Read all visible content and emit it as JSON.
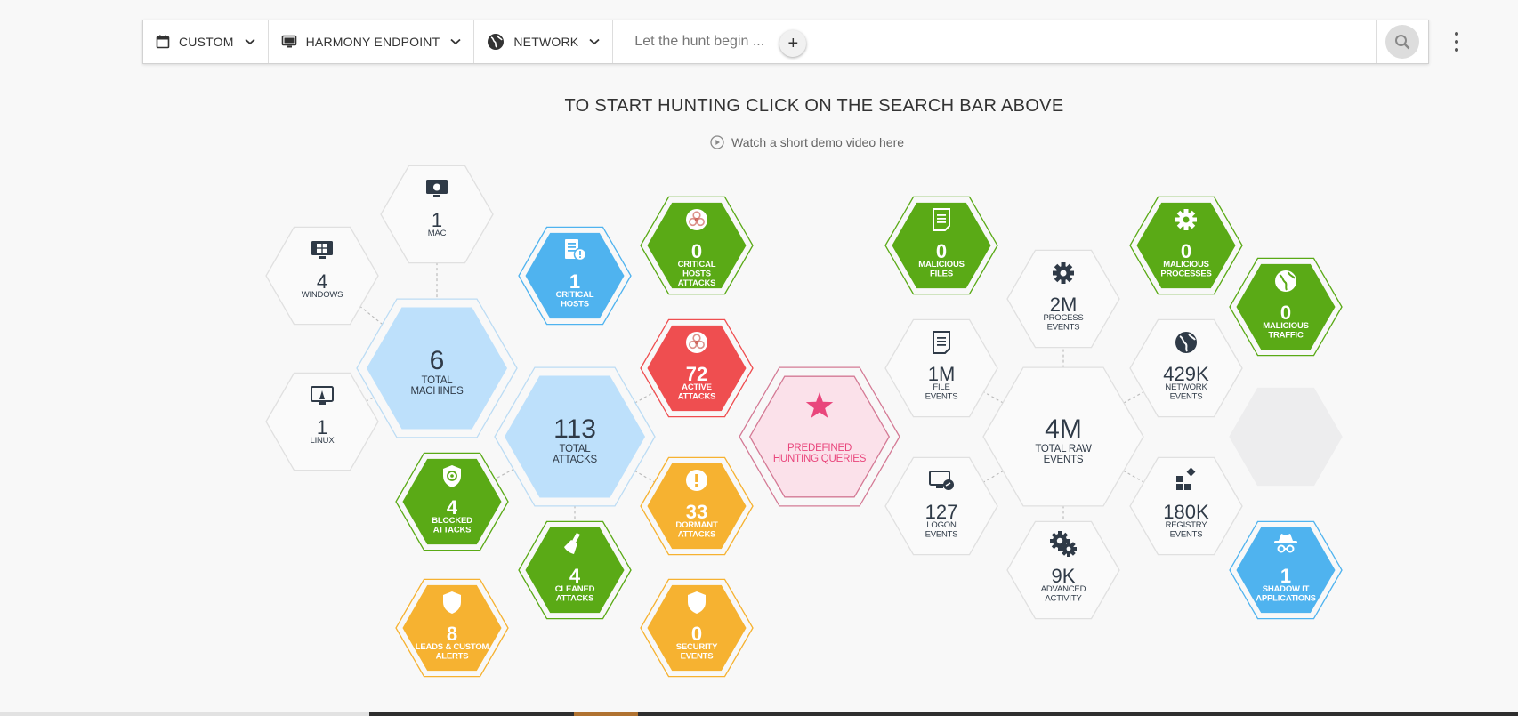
{
  "toolbar": {
    "time_label": "CUSTOM",
    "source_label": "HARMONY ENDPOINT",
    "type_label": "NETWORK",
    "search_placeholder": "Let the hunt begin ...",
    "plus_label": "+"
  },
  "heading": "TO START HUNTING CLICK ON THE SEARCH BAR ABOVE",
  "demo_link": "Watch a short demo video here",
  "colors": {
    "green": "#5aaa16",
    "blue": "#4fb3ef",
    "red": "#ef4e50",
    "yellow": "#f6b231",
    "light": "#bde0fb",
    "pink": "#fbe1ea",
    "pink_border": "#d47a95",
    "star": "#e9467c",
    "gray": "#ededee",
    "text": "#2f3a47"
  },
  "tiles": [
    {
      "id": "mac",
      "value": "1",
      "label": [
        "MAC"
      ],
      "style": "white",
      "icon": "apple-monitor-icon"
    },
    {
      "id": "windows",
      "value": "4",
      "label": [
        "WINDOWS"
      ],
      "style": "white",
      "icon": "windows-monitor-icon"
    },
    {
      "id": "total-machines",
      "value": "6",
      "label": [
        "TOTAL",
        "MACHINES"
      ],
      "style": "light"
    },
    {
      "id": "linux",
      "value": "1",
      "label": [
        "LINUX"
      ],
      "style": "white",
      "icon": "linux-monitor-icon"
    },
    {
      "id": "critical-hosts",
      "value": "1",
      "label": [
        "CRITICAL",
        "HOSTS"
      ],
      "style": "blue",
      "icon": "server-alert-icon"
    },
    {
      "id": "critical-hosts-attacks",
      "value": "0",
      "label": [
        "CRITICAL",
        "HOSTS",
        "ATTACKS"
      ],
      "style": "green",
      "icon": "biohazard-icon"
    },
    {
      "id": "active-attacks",
      "value": "72",
      "label": [
        "ACTIVE",
        "ATTACKS"
      ],
      "style": "red",
      "icon": "biohazard-icon"
    },
    {
      "id": "total-attacks",
      "value": "113",
      "label": [
        "TOTAL",
        "ATTACKS"
      ],
      "style": "light"
    },
    {
      "id": "blocked-attacks",
      "value": "4",
      "label": [
        "BLOCKED",
        "ATTACKS"
      ],
      "style": "green",
      "icon": "shield-target-icon"
    },
    {
      "id": "dormant-attacks",
      "value": "33",
      "label": [
        "DORMANT",
        "ATTACKS"
      ],
      "style": "yellow",
      "icon": "exclamation-icon"
    },
    {
      "id": "cleaned-attacks",
      "value": "4",
      "label": [
        "CLEANED",
        "ATTACKS"
      ],
      "style": "green",
      "icon": "broom-icon"
    },
    {
      "id": "leads-custom-alerts",
      "value": "8",
      "label": [
        "LEADS & CUSTOM",
        "ALERTS"
      ],
      "style": "yellow",
      "icon": "shield-icon"
    },
    {
      "id": "security-events",
      "value": "0",
      "label": [
        "SECURITY",
        "EVENTS"
      ],
      "style": "yellow",
      "icon": "shield-icon"
    },
    {
      "id": "predefined-queries",
      "value": "",
      "label": [
        "PREDEFINED",
        "HUNTING QUERIES"
      ],
      "style": "pink",
      "icon": "star-icon"
    },
    {
      "id": "malicious-files",
      "value": "0",
      "label": [
        "MALICIOUS",
        "FILES"
      ],
      "style": "green",
      "icon": "document-icon"
    },
    {
      "id": "process-events",
      "value": "2M",
      "label": [
        "PROCESS",
        "EVENTS"
      ],
      "style": "white",
      "icon": "gear-icon"
    },
    {
      "id": "malicious-processes",
      "value": "0",
      "label": [
        "MALICIOUS",
        "PROCESSES"
      ],
      "style": "green",
      "icon": "gear-icon"
    },
    {
      "id": "malicious-traffic",
      "value": "0",
      "label": [
        "MALICIOUS",
        "TRAFFIC"
      ],
      "style": "green",
      "icon": "globe-icon"
    },
    {
      "id": "file-events",
      "value": "1M",
      "label": [
        "FILE",
        "EVENTS"
      ],
      "style": "white",
      "icon": "document-icon"
    },
    {
      "id": "total-raw-events",
      "value": "4M",
      "label": [
        "TOTAL RAW",
        "EVENTS"
      ],
      "style": "white"
    },
    {
      "id": "network-events",
      "value": "429K",
      "label": [
        "NETWORK",
        "EVENTS"
      ],
      "style": "white",
      "icon": "globe-icon"
    },
    {
      "id": "empty-slot",
      "value": "",
      "label": [],
      "style": "gray"
    },
    {
      "id": "logon-events",
      "value": "127",
      "label": [
        "LOGON",
        "EVENTS"
      ],
      "style": "white",
      "icon": "logon-monitor-icon"
    },
    {
      "id": "registry-events",
      "value": "180K",
      "label": [
        "REGISTRY",
        "EVENTS"
      ],
      "style": "white",
      "icon": "registry-blocks-icon"
    },
    {
      "id": "advanced-activity",
      "value": "9K",
      "label": [
        "ADVANCED",
        "ACTIVITY"
      ],
      "style": "white",
      "icon": "gears-icon"
    },
    {
      "id": "shadow-it",
      "value": "1",
      "label": [
        "SHADOW IT",
        "APPLICATIONS"
      ],
      "style": "blue",
      "icon": "spy-icon"
    }
  ]
}
